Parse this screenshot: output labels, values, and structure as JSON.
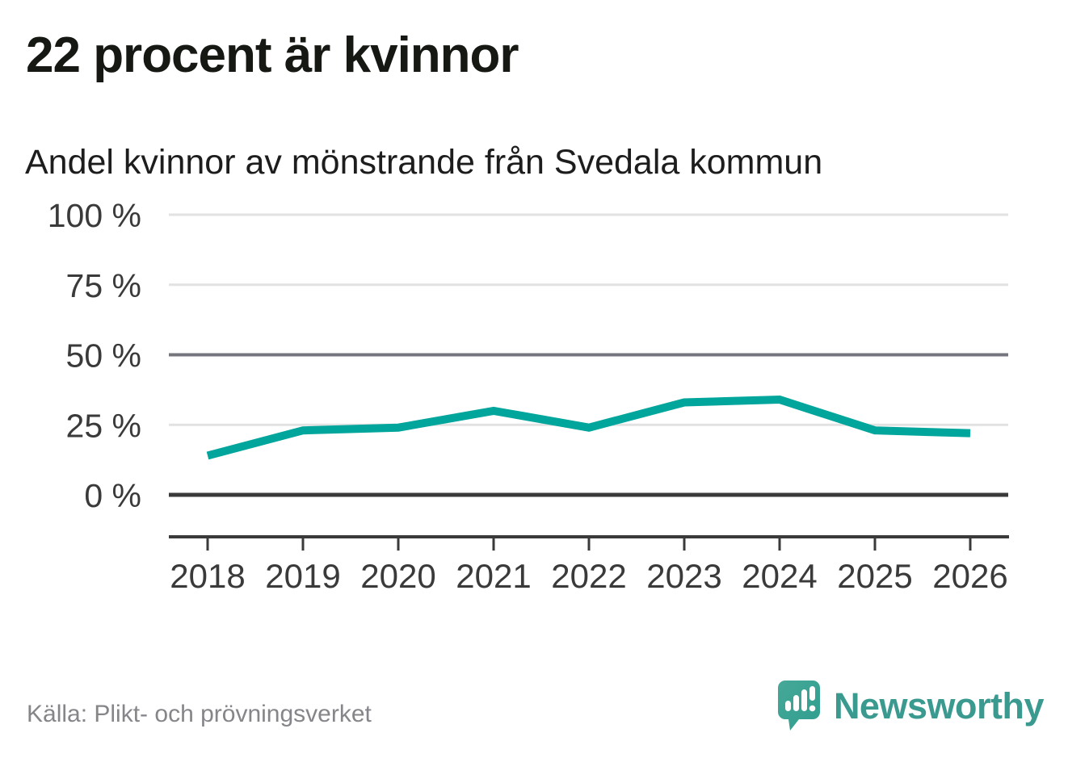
{
  "header": {
    "title": "22 procent är kvinnor",
    "subtitle": "Andel kvinnor av mönstrande från Svedala kommun"
  },
  "footer": {
    "source": "Källa: Plikt- och prövningsverket",
    "brand": "Newsworthy"
  },
  "colors": {
    "line": "#00a59b",
    "grid_light": "#e2e2e2",
    "grid_mid": "#75757d",
    "grid_zero": "#3a3a3a",
    "axis": "#3a3a3a",
    "tick_label": "#3a3a3a",
    "brand_teal": "#3a9a90",
    "logo_bubble": "#2f9e8f",
    "logo_bubble_light": "#46a898"
  },
  "chart_data": {
    "type": "line",
    "title": "22 procent är kvinnor",
    "subtitle": "Andel kvinnor av mönstrande från Svedala kommun",
    "x": [
      2018,
      2019,
      2020,
      2021,
      2022,
      2023,
      2024,
      2025,
      2026
    ],
    "series": [
      {
        "name": "Andel kvinnor av mönstrande",
        "unit": "%",
        "values": [
          14,
          23,
          24,
          30,
          24,
          33,
          34,
          23,
          22
        ]
      }
    ],
    "xlabel": "",
    "ylabel": "",
    "ylim": [
      0,
      100
    ],
    "yticks": [
      0,
      25,
      50,
      75,
      100
    ],
    "ytick_labels": [
      "0 %",
      "25 %",
      "50 %",
      "75 %",
      "100 %"
    ],
    "xtick_labels": [
      "2018",
      "2019",
      "2020",
      "2021",
      "2022",
      "2023",
      "2024",
      "2025",
      "2026"
    ],
    "grid": true,
    "legend": false
  }
}
